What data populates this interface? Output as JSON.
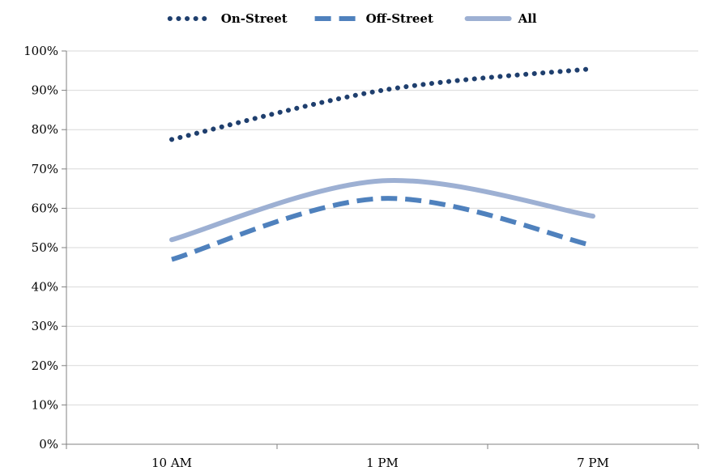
{
  "chart_data": {
    "type": "line",
    "categories": [
      "10 AM",
      "1 PM",
      "7 PM"
    ],
    "series": [
      {
        "name": "On-Street",
        "values": [
          77.5,
          90,
          95.5
        ],
        "color": "#1F3F6E",
        "style": "dotted"
      },
      {
        "name": "Off-Street",
        "values": [
          47,
          62.5,
          50.5
        ],
        "color": "#4F81BD",
        "style": "dashed"
      },
      {
        "name": "All",
        "values": [
          52,
          67,
          58
        ],
        "color": "#9DB0D3",
        "style": "solid"
      }
    ],
    "y_ticks": [
      "0%",
      "10%",
      "20%",
      "30%",
      "40%",
      "50%",
      "60%",
      "70%",
      "80%",
      "90%",
      "100%"
    ],
    "ylim": [
      0,
      100
    ],
    "smooth": true,
    "grid": true,
    "legend": "top"
  }
}
